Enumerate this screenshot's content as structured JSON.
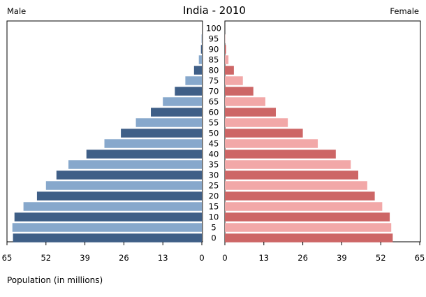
{
  "chart_data": {
    "type": "bar",
    "title": "India - 2010",
    "left_label": "Male",
    "right_label": "Female",
    "xlabel": "Population (in millions)",
    "xlim": [
      0,
      65
    ],
    "x_ticks": [
      0,
      13,
      26,
      39,
      52,
      65
    ],
    "categories": [
      "0",
      "5",
      "10",
      "15",
      "20",
      "25",
      "30",
      "35",
      "40",
      "45",
      "50",
      "55",
      "60",
      "65",
      "70",
      "75",
      "80",
      "85",
      "90",
      "95",
      "100"
    ],
    "series": [
      {
        "name": "Male",
        "side": "left",
        "values": [
          63.0,
          63.2,
          62.5,
          59.5,
          55.0,
          52.0,
          48.5,
          44.5,
          38.5,
          32.5,
          27.0,
          22.0,
          17.0,
          13.0,
          9.0,
          5.5,
          2.6,
          1.0,
          0.3,
          0.1,
          0.0
        ],
        "colors": [
          "#3f5f87",
          "#87a8cc"
        ]
      },
      {
        "name": "Female",
        "side": "right",
        "values": [
          56.0,
          55.5,
          55.0,
          52.5,
          50.0,
          47.5,
          44.5,
          42.0,
          37.0,
          31.0,
          26.0,
          21.0,
          17.0,
          13.5,
          9.5,
          6.0,
          3.0,
          1.2,
          0.4,
          0.1,
          0.0
        ],
        "colors": [
          "#cd6666",
          "#f2a8a8"
        ]
      }
    ],
    "grid": false,
    "legend": "none"
  }
}
